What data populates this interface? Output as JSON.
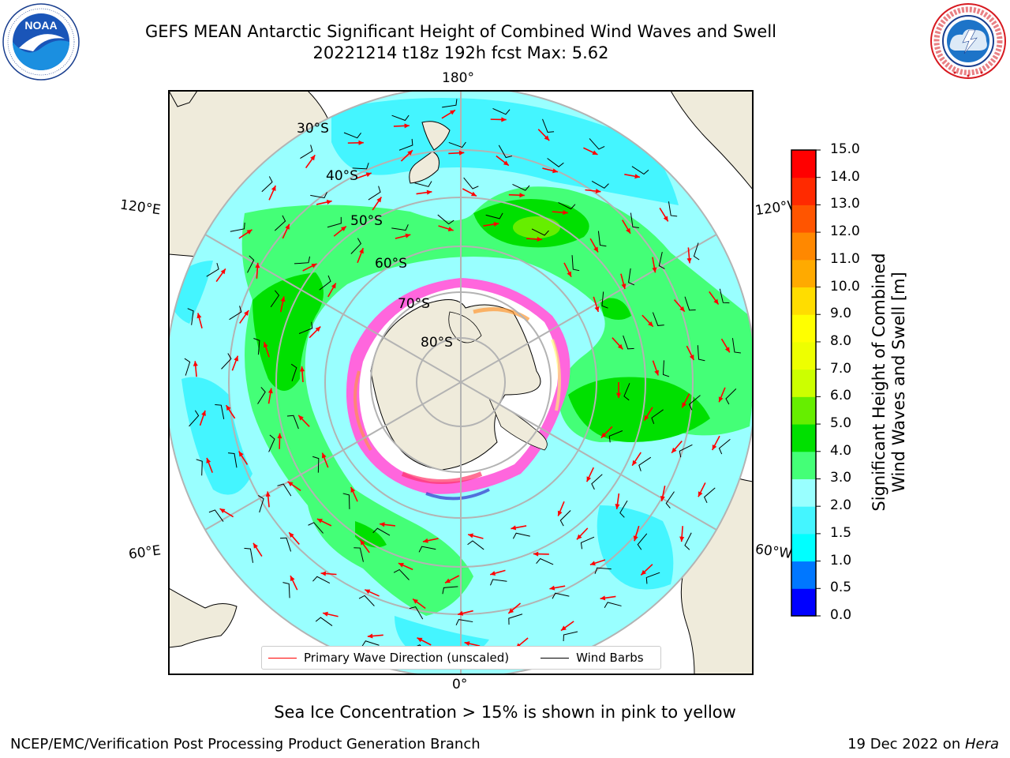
{
  "header": {
    "title_line1": "GEFS MEAN Antarctic Significant Height of Combined Wind Waves and Swell",
    "title_line2": "20221214 t18z 192h fcst   Max: 5.62",
    "noaa_logo_text": "NOAA",
    "noaa_ring_text": "NATIONAL OCEANIC AND ATMOSPHERIC ADMINISTRATION · U.S. DEPARTMENT OF COMMERCE",
    "nws_ring_text": "NATIONAL WEATHER SERVICE"
  },
  "map": {
    "longitude_labels": {
      "top": "180°",
      "bottom": "0°",
      "left_upper": "120°E",
      "left_lower": "60°E",
      "right_upper": "120°W",
      "right_lower": "60°W"
    },
    "latitude_labels": [
      "30°S",
      "40°S",
      "50°S",
      "60°S",
      "70°S",
      "80°S"
    ],
    "projection": "south-polar-stereographic",
    "land_color": "#efebdb",
    "sea_ice_colors": [
      "#ff33cc",
      "#ff9933",
      "#ffff66",
      "#3333cc"
    ]
  },
  "legend": {
    "items": [
      {
        "label": "Primary Wave Direction (unscaled)",
        "color": "#ff0000"
      },
      {
        "label": "Wind Barbs",
        "color": "#000000"
      }
    ]
  },
  "colorbar": {
    "label_line1": "Significant Height of Combined",
    "label_line2": "Wind Waves and Swell [m]",
    "ticks": [
      "0.0",
      "0.5",
      "1.0",
      "1.5",
      "2.0",
      "3.0",
      "4.0",
      "5.0",
      "6.0",
      "7.0",
      "8.0",
      "9.0",
      "10.0",
      "11.0",
      "12.0",
      "13.0",
      "14.0",
      "15.0"
    ],
    "colors": [
      "#0000ff",
      "#0077ff",
      "#00ffff",
      "#44f5ff",
      "#99ffff",
      "#44ff77",
      "#00e000",
      "#66ee00",
      "#ccff00",
      "#eeff00",
      "#ffff00",
      "#ffdd00",
      "#ffaa00",
      "#ff8800",
      "#ff5500",
      "#ff2a00",
      "#ff0000"
    ]
  },
  "caption": "Sea Ice Concentration > 15% is shown in pink to yellow",
  "footer": {
    "left": "NCEP/EMC/Verification Post Processing Product Generation Branch",
    "right_prefix": "19 Dec 2022 on ",
    "right_italic": "Hera"
  }
}
